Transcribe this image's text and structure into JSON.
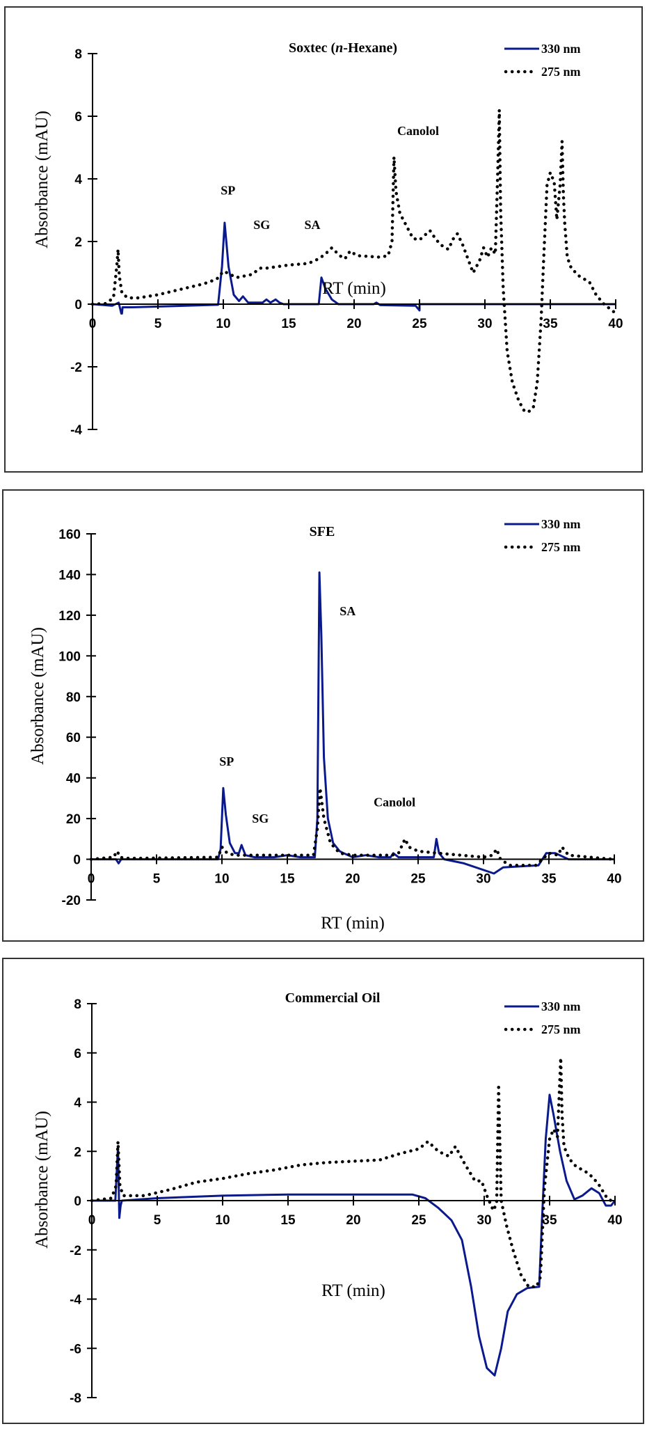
{
  "chart_data": [
    {
      "type": "line",
      "title": "Soxtec (n-Hexane)",
      "title_prefix": "Soxtec (",
      "title_italic": "n",
      "title_suffix": "-Hexane)",
      "xlabel": "RT (min)",
      "ylabel": "Absorbance (mAU)",
      "xlim": [
        0,
        40
      ],
      "ylim": [
        -4,
        8
      ],
      "xticks": [
        0,
        5,
        10,
        15,
        20,
        25,
        30,
        35,
        40
      ],
      "yticks": [
        -4,
        -2,
        0,
        2,
        4,
        6,
        8
      ],
      "legend": [
        "330 nm",
        "275 nm"
      ],
      "legend_position": "top-right",
      "annotations": [
        {
          "text": "SP",
          "x": 9.8,
          "y": 3.5
        },
        {
          "text": "SG",
          "x": 12.3,
          "y": 2.4
        },
        {
          "text": "SA",
          "x": 16.2,
          "y": 2.4
        },
        {
          "text": "Canolol",
          "x": 23.3,
          "y": 5.4
        }
      ],
      "series": [
        {
          "name": "330 nm",
          "color": "#0a1a8c",
          "style": "solid",
          "x": [
            0,
            1.5,
            2.0,
            2.2,
            2.25,
            2.3,
            3,
            9.6,
            9.9,
            10.1,
            10.4,
            10.8,
            11.2,
            11.5,
            11.9,
            13.0,
            13.3,
            13.6,
            14.0,
            14.3,
            14.6,
            17.3,
            17.5,
            17.8,
            18.3,
            18.8,
            21.5,
            21.7,
            22.0,
            24.7,
            25.0,
            25.0,
            40
          ],
          "y": [
            0,
            -0.05,
            0.05,
            -0.3,
            -0.3,
            -0.1,
            -0.1,
            -0.02,
            1.2,
            2.6,
            1.2,
            0.3,
            0.1,
            0.25,
            0.05,
            0.05,
            0.15,
            0.05,
            0.15,
            0.05,
            0.0,
            0.0,
            0.85,
            0.5,
            0.15,
            0.0,
            0.0,
            0.05,
            -0.03,
            -0.05,
            -0.2,
            0.0,
            0.0
          ]
        },
        {
          "name": "275 nm",
          "color": "#000000",
          "style": "dotted",
          "x": [
            0,
            1.0,
            1.6,
            1.85,
            1.95,
            2.05,
            2.25,
            2.7,
            3.5,
            5.0,
            7.0,
            8.5,
            9.5,
            10.0,
            10.3,
            11.0,
            12.2,
            12.8,
            13.3,
            15.0,
            16.5,
            17.3,
            17.8,
            18.3,
            18.9,
            19.3,
            19.7,
            20.2,
            22.0,
            22.6,
            22.9,
            23.05,
            23.2,
            23.5,
            24.0,
            24.5,
            25.0,
            25.4,
            25.8,
            26.2,
            26.6,
            27.2,
            27.6,
            27.9,
            28.3,
            29.1,
            29.6,
            29.9,
            30.2,
            30.5,
            30.8,
            31.0,
            31.1,
            31.2,
            31.4,
            31.7,
            32.1,
            32.6,
            33.0,
            33.3,
            33.7,
            34.0,
            34.3,
            34.5,
            34.75,
            35.0,
            35.3,
            35.5,
            35.75,
            35.9,
            36.0,
            36.1,
            36.3,
            36.6,
            37.2,
            38.0,
            38.5,
            39.2,
            39.6,
            40.0
          ],
          "y": [
            0,
            0.02,
            0.2,
            1.2,
            1.75,
            0.9,
            0.35,
            0.2,
            0.2,
            0.3,
            0.5,
            0.65,
            0.8,
            1.05,
            1.0,
            0.85,
            0.95,
            1.15,
            1.15,
            1.25,
            1.3,
            1.45,
            1.6,
            1.8,
            1.55,
            1.45,
            1.7,
            1.55,
            1.5,
            1.55,
            2.0,
            4.7,
            3.6,
            2.9,
            2.5,
            2.1,
            2.05,
            2.2,
            2.35,
            2.1,
            1.9,
            1.75,
            2.1,
            2.25,
            1.9,
            1.0,
            1.4,
            1.8,
            1.5,
            1.8,
            1.6,
            4.5,
            6.2,
            3.0,
            0.5,
            -1.5,
            -2.5,
            -3.1,
            -3.4,
            -3.45,
            -3.3,
            -2.5,
            -0.5,
            1.5,
            3.8,
            4.2,
            3.9,
            2.7,
            3.8,
            5.2,
            3.5,
            2.6,
            1.5,
            1.15,
            0.9,
            0.7,
            0.3,
            -0.05,
            -0.15,
            -0.3
          ]
        }
      ]
    },
    {
      "type": "line",
      "title": "SFE",
      "xlabel": "RT (min)",
      "ylabel": "Absorbance (mAU)",
      "xlim": [
        0,
        40
      ],
      "ylim": [
        -20,
        160
      ],
      "xticks": [
        0,
        5,
        10,
        15,
        20,
        25,
        30,
        35,
        40
      ],
      "yticks": [
        -20,
        0,
        20,
        40,
        60,
        80,
        100,
        120,
        140,
        160
      ],
      "legend": [
        "330 nm",
        "275 nm"
      ],
      "legend_position": "top-right",
      "annotations": [
        {
          "text": "SP",
          "x": 9.8,
          "y": 46
        },
        {
          "text": "SG",
          "x": 12.3,
          "y": 18
        },
        {
          "text": "SA",
          "x": 19.0,
          "y": 120
        },
        {
          "text": "Canolol",
          "x": 21.6,
          "y": 26
        }
      ],
      "series": [
        {
          "name": "330 nm",
          "color": "#0a1a8c",
          "style": "solid",
          "x": [
            0,
            1.9,
            2.1,
            2.3,
            9.7,
            9.9,
            10.1,
            10.3,
            10.6,
            11.0,
            11.3,
            11.5,
            11.8,
            12.5,
            14.0,
            15.0,
            16.0,
            17.1,
            17.3,
            17.45,
            17.6,
            17.8,
            18.1,
            18.5,
            19.0,
            19.3,
            20.0,
            21.0,
            22.0,
            22.9,
            23.1,
            23.5,
            26.2,
            26.4,
            26.6,
            27.0,
            28.5,
            30.8,
            31.5,
            34.2,
            34.8,
            35.5,
            36.5,
            40
          ],
          "y": [
            0,
            0,
            -2,
            0,
            0,
            5,
            35,
            22,
            8,
            3,
            3,
            7,
            2,
            1,
            1,
            2,
            1,
            1,
            20,
            141,
            110,
            50,
            20,
            8,
            4,
            3,
            1,
            2,
            1,
            1,
            3,
            1,
            1,
            10,
            3,
            0,
            -2,
            -7,
            -4,
            -3,
            3,
            3,
            0,
            0
          ]
        },
        {
          "name": "275 nm",
          "color": "#000000",
          "style": "dotted",
          "x": [
            0,
            1.7,
            2.0,
            2.2,
            2.6,
            4.0,
            9.7,
            10.0,
            10.4,
            11.0,
            12.0,
            15.0,
            17.0,
            17.3,
            17.5,
            17.8,
            18.3,
            19.0,
            20.0,
            23.0,
            23.5,
            24.0,
            24.3,
            25.0,
            26.5,
            30.0,
            30.7,
            31.0,
            31.3,
            32.0,
            34.0,
            34.5,
            35.0,
            35.7,
            36.0,
            36.5,
            39.0,
            40
          ],
          "y": [
            0,
            1,
            4,
            1,
            0.5,
            0.5,
            1,
            6,
            3,
            2,
            2,
            2,
            2,
            15,
            35,
            20,
            8,
            3,
            2,
            2,
            3,
            10,
            6,
            4,
            3,
            1,
            2,
            5,
            0,
            -3,
            -3,
            0,
            3,
            2,
            6,
            2,
            0.5,
            0
          ]
        }
      ]
    },
    {
      "type": "line",
      "title": "Commercial Oil",
      "xlabel": "RT (min)",
      "ylabel": "Absorbance (mAU)",
      "xlim": [
        0,
        40
      ],
      "ylim": [
        -8,
        8
      ],
      "xticks": [
        0,
        5,
        10,
        15,
        20,
        25,
        30,
        35,
        40
      ],
      "yticks": [
        -8,
        -6,
        -4,
        -2,
        0,
        2,
        4,
        6,
        8
      ],
      "legend": [
        "330 nm",
        "275 nm"
      ],
      "legend_position": "top-right",
      "annotations": [],
      "series": [
        {
          "name": "330 nm",
          "color": "#0a1a8c",
          "style": "solid",
          "x": [
            0,
            1.8,
            2.0,
            2.1,
            2.2,
            2.3,
            5,
            10,
            15,
            20,
            24.5,
            25.5,
            26.5,
            27.5,
            28.3,
            29.0,
            29.6,
            30.2,
            30.8,
            31.3,
            31.8,
            32.5,
            33.3,
            34.2,
            34.4,
            34.7,
            35.0,
            35.3,
            35.8,
            36.3,
            36.9,
            37.5,
            38.2,
            38.8,
            39.3,
            39.7,
            40.0
          ],
          "y": [
            0,
            0,
            2.2,
            -0.7,
            -0.2,
            0,
            0.1,
            0.2,
            0.25,
            0.25,
            0.25,
            0.1,
            -0.3,
            -0.8,
            -1.6,
            -3.5,
            -5.5,
            -6.8,
            -7.1,
            -6.0,
            -4.5,
            -3.8,
            -3.55,
            -3.5,
            -1.0,
            2.5,
            4.3,
            3.5,
            2.0,
            0.8,
            0.05,
            0.2,
            0.5,
            0.3,
            -0.2,
            -0.2,
            0
          ]
        },
        {
          "name": "275 nm",
          "color": "#000000",
          "style": "dotted",
          "x": [
            0,
            1.5,
            1.85,
            2.0,
            2.15,
            2.4,
            4.0,
            6.0,
            8.0,
            10.0,
            12.0,
            14.0,
            16.0,
            18.0,
            20.0,
            22.0,
            23.5,
            25.0,
            25.7,
            26.5,
            27.3,
            27.8,
            28.5,
            29.3,
            29.8,
            30.2,
            30.7,
            30.95,
            31.1,
            31.3,
            31.7,
            32.2,
            32.8,
            33.4,
            34.0,
            34.3,
            34.6,
            35.0,
            35.3,
            35.6,
            35.85,
            35.95,
            36.1,
            36.5,
            37.0,
            38.0,
            38.7,
            39.4,
            40.0
          ],
          "y": [
            0,
            0.1,
            0.6,
            2.4,
            0.6,
            0.2,
            0.2,
            0.45,
            0.75,
            0.9,
            1.1,
            1.25,
            1.45,
            1.55,
            1.6,
            1.65,
            1.9,
            2.1,
            2.4,
            2.0,
            1.8,
            2.2,
            1.5,
            0.8,
            0.8,
            0.2,
            -0.4,
            -0.1,
            4.6,
            0.0,
            -1.0,
            -2.0,
            -3.0,
            -3.5,
            -3.5,
            -3.1,
            0.5,
            2.5,
            2.9,
            2.6,
            5.8,
            3.5,
            2.2,
            1.7,
            1.4,
            1.1,
            0.7,
            0.1,
            -0.1
          ]
        }
      ]
    }
  ]
}
